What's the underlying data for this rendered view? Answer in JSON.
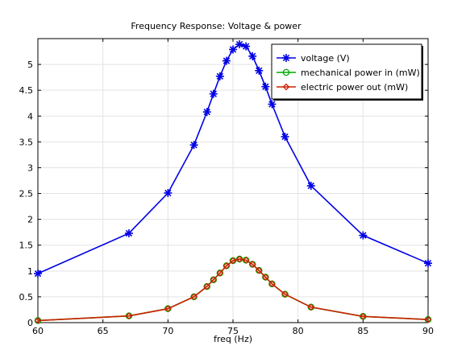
{
  "chart_data": {
    "type": "line",
    "title": "Frequency Response: Voltage & power",
    "xlabel": "freq (Hz)",
    "ylabel": "",
    "xlim": [
      60,
      90
    ],
    "ylim": [
      0,
      5.5
    ],
    "x_ticks": [
      60,
      65,
      70,
      75,
      80,
      85,
      90
    ],
    "y_ticks": [
      0,
      0.5,
      1,
      1.5,
      2,
      2.5,
      3,
      3.5,
      4,
      4.5,
      5
    ],
    "x_tick_labels": [
      "60",
      "65",
      "70",
      "75",
      "80",
      "85",
      "90"
    ],
    "y_tick_labels": [
      "0",
      "0.5",
      "1",
      "1.5",
      "2",
      "2.5",
      "3",
      "3.5",
      "4",
      "4.5",
      "5"
    ],
    "grid": true,
    "legend_position": "top-right",
    "series": [
      {
        "name": "voltage (V)",
        "color": "#0000e6",
        "marker": "asterisk",
        "x": [
          60,
          67,
          70,
          72,
          73,
          73.5,
          74,
          74.5,
          75,
          75.5,
          76,
          76.5,
          77,
          77.5,
          78,
          79,
          81,
          85,
          90
        ],
        "y": [
          0.95,
          1.73,
          2.51,
          3.44,
          4.08,
          4.43,
          4.77,
          5.07,
          5.29,
          5.39,
          5.35,
          5.16,
          4.88,
          4.57,
          4.23,
          3.6,
          2.65,
          1.69,
          1.15
        ]
      },
      {
        "name": "mechanical power in (mW)",
        "color": "#00aa00",
        "marker": "circle",
        "x": [
          60,
          67,
          70,
          72,
          73,
          73.5,
          74,
          74.5,
          75,
          75.5,
          76,
          76.5,
          77,
          77.5,
          78,
          79,
          81,
          85,
          90
        ],
        "y": [
          0.04,
          0.13,
          0.27,
          0.5,
          0.7,
          0.83,
          0.96,
          1.1,
          1.2,
          1.23,
          1.21,
          1.13,
          1.01,
          0.88,
          0.75,
          0.55,
          0.3,
          0.12,
          0.06
        ]
      },
      {
        "name": "electric power out (mW)",
        "color": "#cc2200",
        "marker": "diamond",
        "x": [
          60,
          67,
          70,
          72,
          73,
          73.5,
          74,
          74.5,
          75,
          75.5,
          76,
          76.5,
          77,
          77.5,
          78,
          79,
          81,
          85,
          90
        ],
        "y": [
          0.04,
          0.13,
          0.27,
          0.5,
          0.7,
          0.83,
          0.96,
          1.1,
          1.2,
          1.23,
          1.21,
          1.13,
          1.01,
          0.88,
          0.75,
          0.55,
          0.3,
          0.12,
          0.06
        ]
      }
    ]
  }
}
